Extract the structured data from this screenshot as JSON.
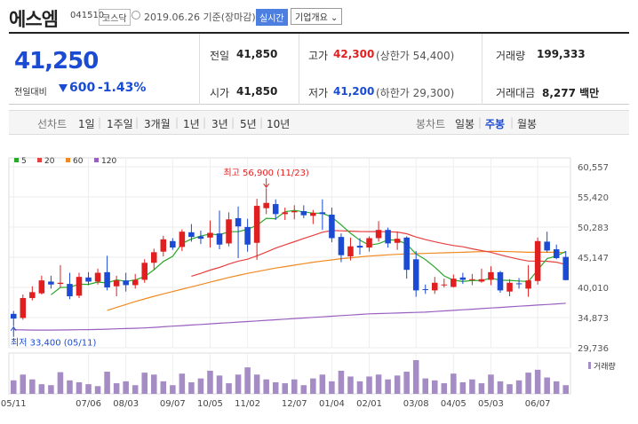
{
  "header": {
    "name": "에스엠",
    "code": "041510",
    "market": "코스닥",
    "date": "2019.06.26 기준(장마감)",
    "realtime_btn": "실시간",
    "company_btn": "기업개요 ⌄"
  },
  "summary": {
    "price": "41,250",
    "change_label": "전일대비",
    "change": "600",
    "change_rate": "-1.43%",
    "prev_label": "전일",
    "prev": "41,850",
    "open_label": "시가",
    "open": "41,850",
    "high_label": "고가",
    "high": "42,300",
    "upper_limit": "(상한가 54,400)",
    "low_label": "저가",
    "low": "41,200",
    "lower_limit": "(하한가 29,300)",
    "volume_label": "거래량",
    "volume": "199,333",
    "amount_label": "거래대금",
    "amount": "8,277 백만",
    "colors": {
      "up": "#e02020",
      "down": "#1a4bd2"
    }
  },
  "tabs": {
    "line_label": "선차트",
    "periods": [
      "1일",
      "1주일",
      "3개월",
      "1년",
      "3년",
      "5년",
      "10년"
    ],
    "candle_label": "봉차트",
    "candles": [
      "일봉",
      "주봉",
      "월봉"
    ],
    "selected_candle": "주봉"
  },
  "chart_data": {
    "type": "candlestick",
    "interval": "weekly",
    "legend": [
      {
        "name": "5",
        "color": "#2aa82a"
      },
      {
        "name": "20",
        "color": "#e84040"
      },
      {
        "name": "60",
        "color": "#f08a20"
      },
      {
        "name": "120",
        "color": "#9a60c0"
      }
    ],
    "y_ticks": [
      60557,
      55420,
      50283,
      45147,
      40010,
      34873,
      29736
    ],
    "ylim": [
      29736,
      60557
    ],
    "x_ticks": [
      {
        "index": 0,
        "label": "05/11"
      },
      {
        "index": 8,
        "label": "07/06"
      },
      {
        "index": 12,
        "label": "08/03"
      },
      {
        "index": 17,
        "label": "09/07"
      },
      {
        "index": 21,
        "label": "10/05"
      },
      {
        "index": 25,
        "label": "11/02"
      },
      {
        "index": 30,
        "label": "12/07"
      },
      {
        "index": 34,
        "label": "01/04"
      },
      {
        "index": 38,
        "label": "02/01"
      },
      {
        "index": 43,
        "label": "03/08"
      },
      {
        "index": 47,
        "label": "04/05"
      },
      {
        "index": 51,
        "label": "05/03"
      },
      {
        "index": 56,
        "label": "06/07"
      }
    ],
    "max_annotation": {
      "label": "최고 56,900 (11/23)",
      "index": 27,
      "value": 56900
    },
    "min_annotation": {
      "label": "최저 33,400 (05/11)",
      "index": 0,
      "value": 33400
    },
    "volume_label": "거래량",
    "candles": [
      [
        35500,
        36000,
        33400,
        34700
      ],
      [
        34800,
        38800,
        34500,
        38200
      ],
      [
        38200,
        40200,
        37800,
        39200
      ],
      [
        39000,
        42000,
        38800,
        41200
      ],
      [
        41000,
        42000,
        39800,
        40500
      ],
      [
        40600,
        43800,
        40000,
        40800
      ],
      [
        40600,
        42500,
        38000,
        38500
      ],
      [
        38600,
        42500,
        38200,
        41800
      ],
      [
        41700,
        42600,
        40400,
        41000
      ],
      [
        41000,
        43200,
        40500,
        42500
      ],
      [
        42600,
        45400,
        39500,
        40000
      ],
      [
        40200,
        42000,
        38500,
        41200
      ],
      [
        41200,
        42500,
        39300,
        40400
      ],
      [
        40400,
        42300,
        39800,
        41300
      ],
      [
        41300,
        44800,
        40800,
        44200
      ],
      [
        44200,
        46600,
        43000,
        46000
      ],
      [
        46100,
        48800,
        45300,
        48200
      ],
      [
        47900,
        48400,
        46400,
        46800
      ],
      [
        46900,
        49900,
        46200,
        49500
      ],
      [
        49400,
        50800,
        47800,
        48600
      ],
      [
        48700,
        49700,
        47400,
        48300
      ],
      [
        48500,
        51400,
        46800,
        49300
      ],
      [
        49200,
        53100,
        46500,
        47300
      ],
      [
        47500,
        52800,
        47000,
        51600
      ],
      [
        51800,
        53800,
        45000,
        50400
      ],
      [
        50300,
        51700,
        46100,
        47300
      ],
      [
        47600,
        55100,
        44700,
        53900
      ],
      [
        53500,
        56900,
        52500,
        54400
      ],
      [
        54200,
        55000,
        51500,
        52500
      ],
      [
        52500,
        53600,
        51500,
        52800
      ],
      [
        52800,
        54000,
        51600,
        53000
      ],
      [
        53000,
        54000,
        51800,
        52300
      ],
      [
        52200,
        53200,
        50800,
        52700
      ],
      [
        52800,
        55000,
        49800,
        52500
      ],
      [
        52400,
        53600,
        47700,
        48400
      ],
      [
        48600,
        49200,
        44300,
        45500
      ],
      [
        45300,
        48500,
        44600,
        47000
      ],
      [
        47100,
        48400,
        45600,
        46800
      ],
      [
        46800,
        48700,
        46100,
        48400
      ],
      [
        48400,
        51300,
        47800,
        49800
      ],
      [
        49800,
        50200,
        46800,
        47500
      ],
      [
        47600,
        49500,
        46400,
        48300
      ],
      [
        48500,
        48700,
        41500,
        43000
      ],
      [
        44800,
        46200,
        38400,
        39500
      ],
      [
        39700,
        40500,
        38900,
        39600
      ],
      [
        39500,
        41800,
        38900,
        40800
      ],
      [
        40400,
        41500,
        40000,
        40500
      ],
      [
        40100,
        42200,
        40000,
        41500
      ],
      [
        41700,
        42500,
        40600,
        41300
      ],
      [
        41300,
        42300,
        40400,
        41400
      ],
      [
        41000,
        43200,
        40800,
        41400
      ],
      [
        41300,
        43600,
        40400,
        42600
      ],
      [
        42600,
        42800,
        39100,
        39500
      ],
      [
        39300,
        41400,
        38500,
        40800
      ],
      [
        40700,
        41600,
        39800,
        40600
      ],
      [
        39800,
        43800,
        38400,
        41200
      ],
      [
        41100,
        48500,
        40500,
        47900
      ],
      [
        47800,
        49500,
        46000,
        46300
      ],
      [
        46500,
        47300,
        44800,
        45000
      ],
      [
        45200,
        46200,
        41200,
        41250
      ]
    ],
    "ma5": [
      null,
      null,
      null,
      null,
      38760,
      40000,
      40040,
      40560,
      40520,
      40920,
      40760,
      41300,
      41020,
      41280,
      41820,
      43020,
      44420,
      45300,
      47500,
      48260,
      48760,
      49100,
      48960,
      49500,
      49500,
      49900,
      50580,
      51780,
      51700,
      52900,
      53120,
      52880,
      52660,
      52640,
      51980,
      50660,
      49220,
      48040,
      47220,
      47460,
      48100,
      48080,
      47360,
      45720,
      44760,
      43460,
      41980,
      41240,
      41000,
      41200,
      41180,
      41600,
      41240,
      41200,
      41100,
      41000,
      42960,
      44920,
      45350,
      46150
    ],
    "ma20": [
      null,
      null,
      null,
      null,
      null,
      null,
      null,
      null,
      null,
      null,
      null,
      null,
      null,
      null,
      null,
      null,
      null,
      null,
      null,
      41915,
      42395,
      42950,
      43405,
      43980,
      44480,
      44820,
      45395,
      46030,
      46710,
      47240,
      47790,
      48345,
      48865,
      49410,
      49690,
      49655,
      49595,
      49525,
      49520,
      49535,
      49485,
      49435,
      49150,
      48595,
      48160,
      47780,
      47450,
      47145,
      46930,
      46575,
      46285,
      45990,
      45560,
      45160,
      44800,
      44500,
      44500,
      44450,
      44300,
      43900
    ],
    "ma60": [
      null,
      null,
      null,
      null,
      null,
      null,
      null,
      null,
      null,
      null,
      36100,
      36600,
      37100,
      37600,
      38050,
      38500,
      38900,
      39300,
      39700,
      40100,
      40500,
      40900,
      41300,
      41700,
      42050,
      42400,
      42700,
      43000,
      43300,
      43550,
      43800,
      44050,
      44300,
      44500,
      44700,
      44900,
      45050,
      45200,
      45350,
      45450,
      45550,
      45650,
      45700,
      45750,
      45800,
      45850,
      45900,
      45950,
      46000,
      46050,
      46100,
      46150,
      46150,
      46100,
      46050,
      46000,
      46000,
      46000,
      46000,
      45900
    ],
    "ma120": [
      32800,
      32780,
      32750,
      32750,
      32750,
      32760,
      32780,
      32800,
      32820,
      32850,
      32900,
      32950,
      33000,
      33050,
      33100,
      33200,
      33300,
      33400,
      33500,
      33600,
      33700,
      33800,
      33900,
      34000,
      34100,
      34200,
      34300,
      34400,
      34500,
      34600,
      34700,
      34800,
      34900,
      35000,
      35100,
      35200,
      35300,
      35400,
      35500,
      35550,
      35600,
      35650,
      35700,
      35750,
      35800,
      35900,
      36000,
      36100,
      36200,
      36300,
      36400,
      36500,
      36600,
      36700,
      36800,
      36900,
      37000,
      37100,
      37200,
      37300
    ],
    "volume": [
      28,
      40,
      30,
      20,
      18,
      45,
      28,
      24,
      20,
      16,
      46,
      22,
      26,
      18,
      44,
      40,
      26,
      18,
      42,
      24,
      32,
      48,
      38,
      22,
      40,
      55,
      40,
      30,
      24,
      22,
      30,
      18,
      32,
      40,
      26,
      48,
      36,
      26,
      36,
      40,
      30,
      38,
      46,
      70,
      32,
      28,
      22,
      42,
      24,
      30,
      22,
      40,
      26,
      20,
      28,
      44,
      50,
      34,
      26,
      18
    ]
  }
}
